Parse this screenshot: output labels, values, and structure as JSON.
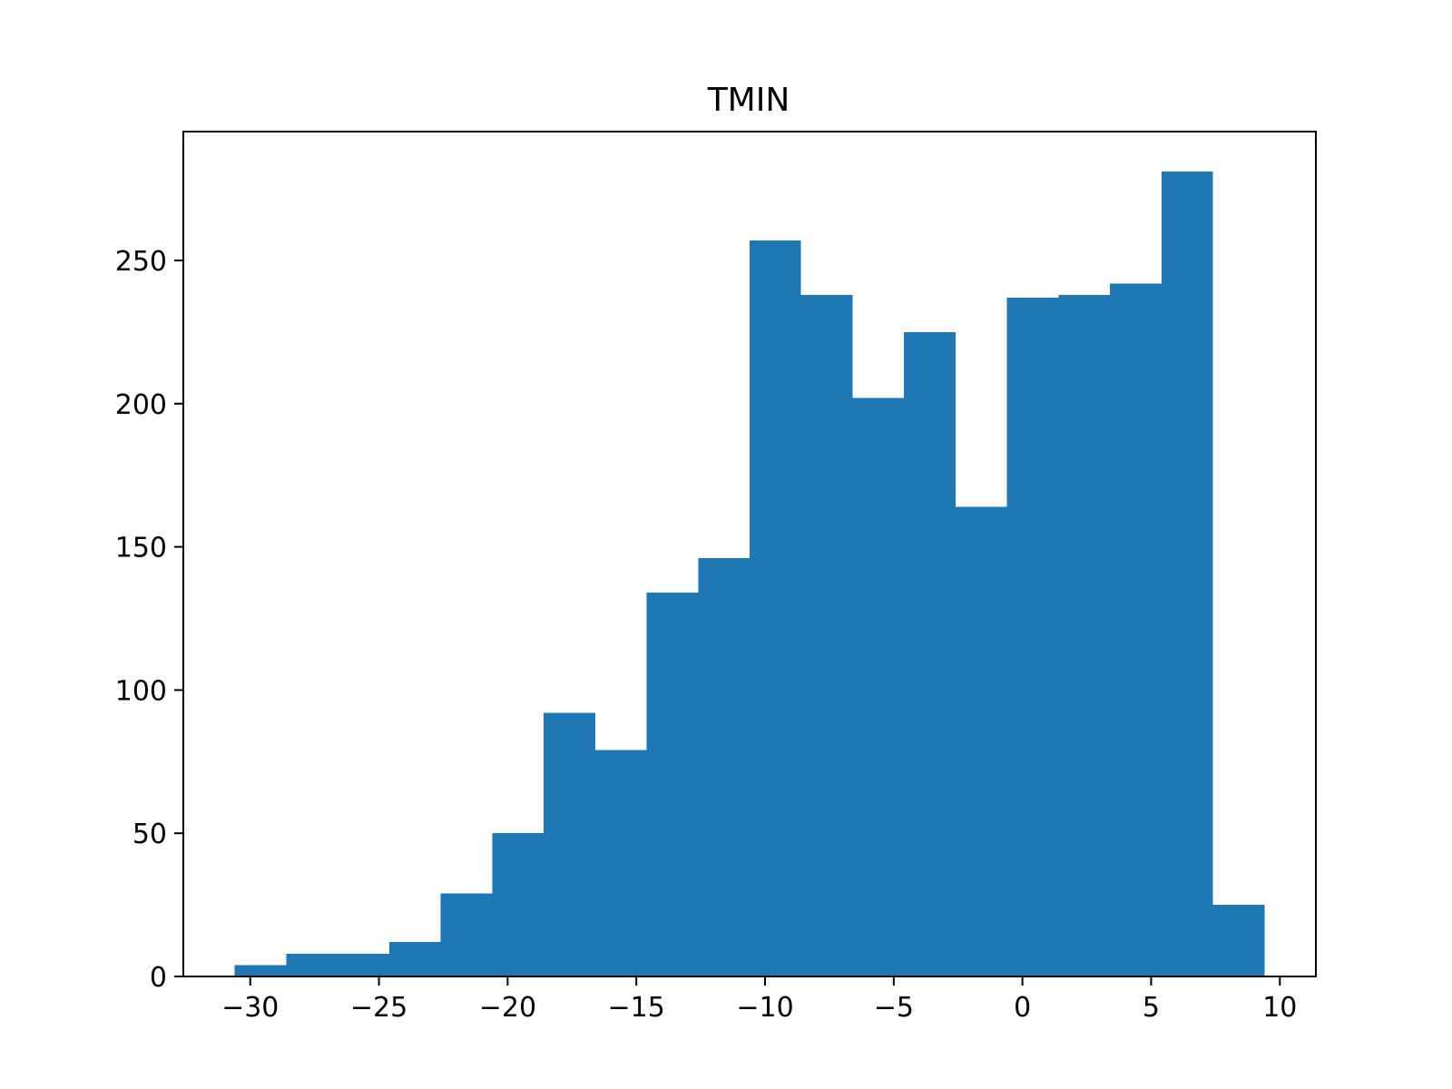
{
  "chart_data": {
    "type": "bar",
    "title": "TMIN",
    "xlabel": "",
    "ylabel": "",
    "bar_color": "#1f77b4",
    "bin_edges": [
      -30.6,
      -28.6,
      -26.6,
      -24.6,
      -22.6,
      -20.6,
      -18.6,
      -16.6,
      -14.6,
      -12.6,
      -10.6,
      -8.6,
      -6.6,
      -4.6,
      -2.6,
      -0.6,
      1.4,
      3.4,
      5.4,
      7.4,
      9.4
    ],
    "values": [
      4,
      8,
      8,
      12,
      29,
      50,
      92,
      79,
      134,
      146,
      257,
      238,
      202,
      225,
      164,
      237,
      238,
      242,
      281,
      25
    ],
    "xlim": [
      -32.6,
      11.4
    ],
    "ylim": [
      0,
      295
    ],
    "x_ticks": [
      -30,
      -25,
      -20,
      -15,
      -10,
      -5,
      0,
      5,
      10
    ],
    "x_tick_labels": [
      "−30",
      "−25",
      "−20",
      "−15",
      "−10",
      "−5",
      "0",
      "5",
      "10"
    ],
    "y_ticks": [
      0,
      50,
      100,
      150,
      200,
      250
    ],
    "y_tick_labels": [
      "0",
      "50",
      "100",
      "150",
      "200",
      "250"
    ],
    "grid": false,
    "legend": "none"
  }
}
